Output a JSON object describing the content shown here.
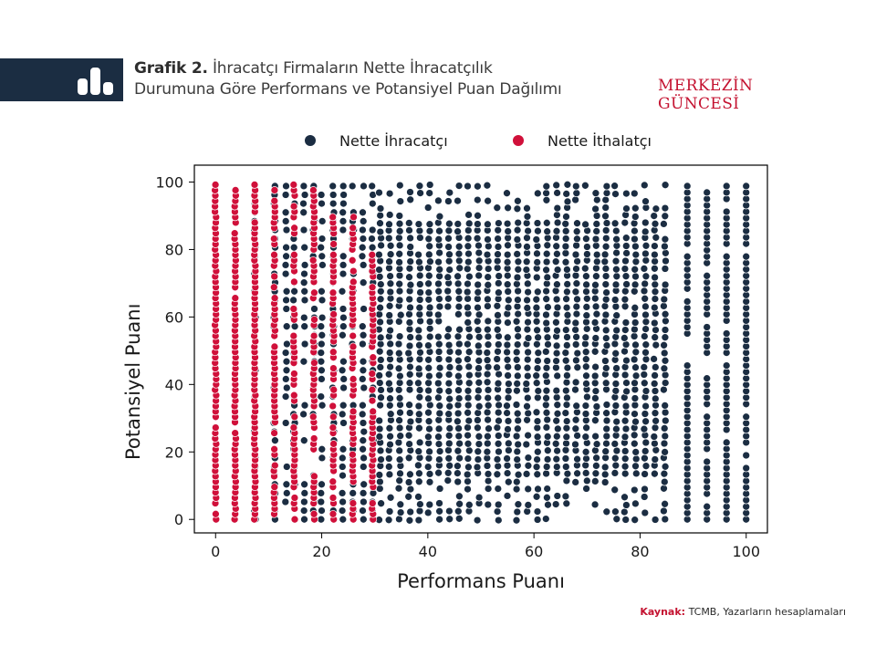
{
  "header": {
    "title_lead": "Grafik 2.",
    "title_line1": "İhracatçı Firmaların Nette İhracatçılık",
    "title_line2": "Durumuna Göre Performans ve Potansiyel Puan Dağılımı",
    "brand": "MERKEZİN GÜNCESİ"
  },
  "footer": {
    "source_label": "Kaynak:",
    "source_text": "TCMB, Yazarların hesaplamaları"
  },
  "chart_data": {
    "type": "scatter",
    "title": "",
    "xlabel": "Performans Puanı",
    "ylabel": "Potansiyel Puanı",
    "xlim": [
      -4,
      104
    ],
    "ylim": [
      -4,
      105
    ],
    "xticks": [
      0,
      20,
      40,
      60,
      80,
      100
    ],
    "yticks": [
      0,
      20,
      40,
      60,
      80,
      100
    ],
    "grid": false,
    "legend_position": "top",
    "series": [
      {
        "name": "Nette İhracatçı",
        "color": "#1b2d42",
        "regions": [
          {
            "x": [
              7.4,
              30
            ],
            "y": [
              0,
              100
            ],
            "density": "columns"
          },
          {
            "x": [
              30,
              86
            ],
            "y": [
              0,
              100
            ],
            "density": "dense"
          },
          {
            "x": [
              88.9,
              100
            ],
            "y": [
              0,
              100
            ],
            "density": "columns"
          }
        ]
      },
      {
        "name": "Nette İthalatçı",
        "color": "#d0103a",
        "regions": [
          {
            "x": [
              0,
              29.6
            ],
            "y": [
              0,
              100
            ],
            "density": "columns"
          }
        ]
      }
    ]
  }
}
